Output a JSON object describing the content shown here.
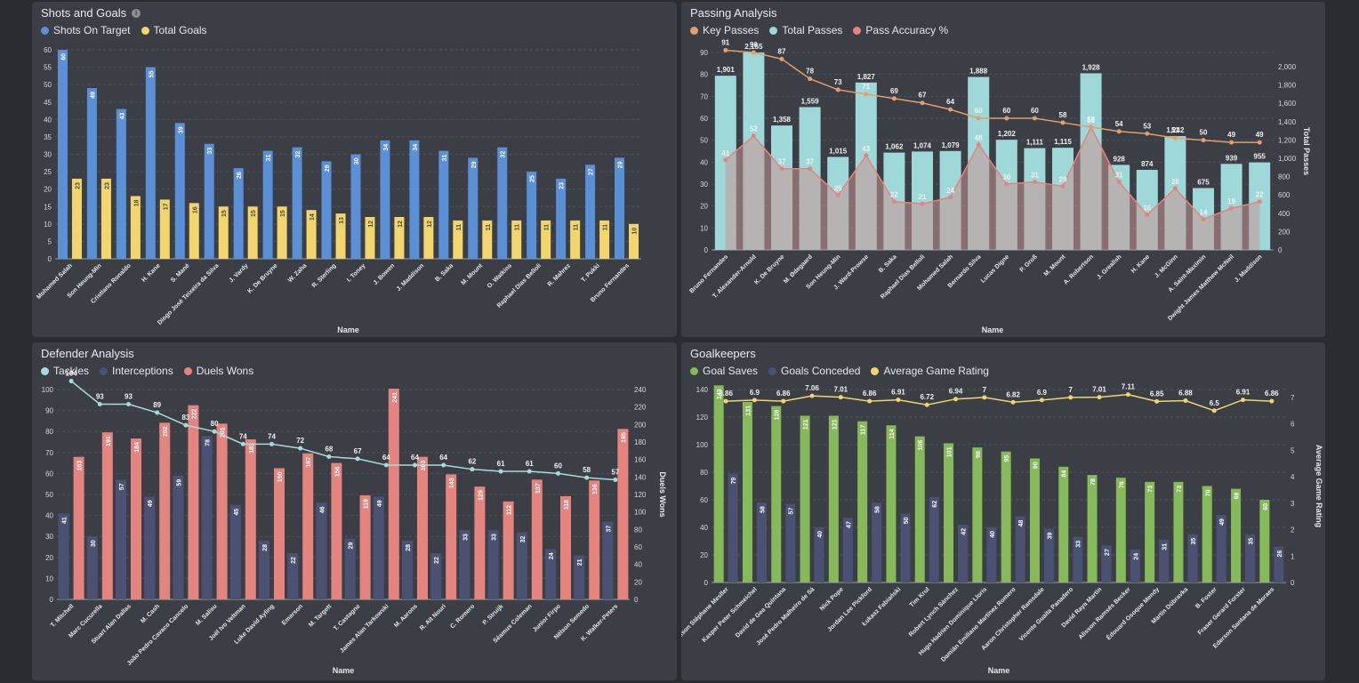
{
  "colors": {
    "blue": "#5b8fd6",
    "yellow": "#f2d66d",
    "orange": "#e09f6c",
    "teal": "#9fd8d8",
    "red": "#e5847f",
    "navy": "#4b5172",
    "green": "#86b95a",
    "gold": "#f0d56c",
    "line_teal": "#a9dada"
  },
  "info_icon": "i",
  "chart_data": [
    {
      "type": "bar",
      "title": "Shots and Goals",
      "xlabel": "Name",
      "ylim": [
        0,
        60
      ],
      "yticks": [
        0,
        5,
        10,
        15,
        20,
        25,
        30,
        35,
        40,
        45,
        50,
        55,
        60
      ],
      "categories": [
        "Mohamed Salah",
        "Son Heung-Min",
        "Cristiano Ronaldo",
        "H. Kane",
        "S. Mané",
        "Diogo José Teixeira da Silva",
        "J. Vardy",
        "K. De Bruyne",
        "W. Zaha",
        "R. Sterling",
        "I. Toney",
        "J. Bowen",
        "J. Maddison",
        "B. Saka",
        "M. Mount",
        "O. Watkins",
        "Raphael Dias Belloli",
        "R. Mahrez",
        "T. Pukki",
        "Bruno Fernandes"
      ],
      "series": [
        {
          "name": "Shots On Target",
          "color": "#5b8fd6",
          "values": [
            60,
            49,
            43,
            55,
            39,
            33,
            26,
            31,
            32,
            28,
            30,
            34,
            34,
            31,
            29,
            32,
            25,
            23,
            27,
            29
          ]
        },
        {
          "name": "Total Goals",
          "color": "#f2d66d",
          "values": [
            23,
            23,
            18,
            17,
            16,
            15,
            15,
            15,
            14,
            13,
            12,
            12,
            12,
            11,
            11,
            11,
            11,
            11,
            11,
            10
          ]
        }
      ]
    },
    {
      "type": "bar",
      "title": "Passing Analysis",
      "xlabel": "Name",
      "ylabel_right": "Total Passes",
      "ylim": [
        0,
        90
      ],
      "yticks": [
        0,
        10,
        20,
        30,
        40,
        50,
        60,
        70,
        80,
        90
      ],
      "y2lim": [
        0,
        2155
      ],
      "y2ticks": [
        0,
        200,
        400,
        600,
        800,
        1000,
        1200,
        1400,
        1600,
        1800,
        2000
      ],
      "y2tick_labels": [
        "0",
        "200",
        "400",
        "600",
        "800",
        "1,000",
        "1,200",
        "1,400",
        "1,600",
        "1,800",
        "2,000"
      ],
      "categories": [
        "Bruno Fernandes",
        "T. Alexander-Arnold",
        "K. De Bruyne",
        "M. Ødegaard",
        "Son Heung-Min",
        "J. Ward-Prowse",
        "B. Saka",
        "Raphael Dias Belloli",
        "Mohamed Salah",
        "Bernardo Silva",
        "Lucas Digne",
        "P. Groß",
        "M. Mount",
        "A. Robertson",
        "J. Grealish",
        "H. Kane",
        "J. McGinn",
        "A. Saint-Maximin",
        "Dwight James Matthew McNeil",
        "J. Maddison"
      ],
      "series": [
        {
          "name": "Key Passes",
          "color": "#e09f6c",
          "kind": "line",
          "values": [
            91,
            90,
            87,
            78,
            73,
            71,
            69,
            67,
            64,
            60,
            60,
            60,
            58,
            56,
            54,
            53,
            51,
            50,
            49,
            49
          ]
        },
        {
          "name": "Total Passes",
          "color": "#9fd8d8",
          "kind": "bar",
          "axis": "right",
          "values": [
            1901,
            2155,
            1358,
            1559,
            1015,
            1827,
            1062,
            1074,
            1079,
            1888,
            1202,
            1111,
            1115,
            1928,
            928,
            874,
            1242,
            675,
            939,
            955
          ],
          "labels": [
            "1,901",
            "2,155",
            "1,358",
            "1,559",
            "1,015",
            "1,827",
            "1,062",
            "1,074",
            "1,079",
            "1,888",
            "1,202",
            "1,111",
            "1,115",
            "1,928",
            "928",
            "874",
            "1,242",
            "675",
            "939",
            "955"
          ]
        },
        {
          "name": "Pass Accuracy %",
          "color": "#e5847f",
          "kind": "area",
          "values": [
            41,
            52,
            37,
            37,
            25,
            43,
            22,
            21,
            24,
            48,
            30,
            31,
            29,
            56,
            31,
            16,
            28,
            14,
            19,
            22
          ]
        }
      ]
    },
    {
      "type": "bar",
      "title": "Defender Analysis",
      "xlabel": "Name",
      "ylabel_right": "Duels Wons",
      "ylim": [
        0,
        100
      ],
      "yticks": [
        0,
        10,
        20,
        30,
        40,
        50,
        60,
        70,
        80,
        90,
        100
      ],
      "y2lim": [
        0,
        240
      ],
      "y2ticks": [
        0,
        20,
        40,
        60,
        80,
        100,
        120,
        140,
        160,
        180,
        200,
        220,
        240
      ],
      "categories": [
        "T. Mitchell",
        "Marc Cucurella",
        "Stuart Alan Dallas",
        "M. Cash",
        "João Pedro Cavaco Cancelo",
        "M. Salisu",
        "Joël Ivo Veltman",
        "Luke David Ayling",
        "Emerson",
        "M. Targett",
        "T. Castagne",
        "James Alan Tarkowski",
        "M. Aarons",
        "R. Aït Nouri",
        "C. Romero",
        "P. Struijk",
        "Séamus Coleman",
        "Junior Firpo",
        "Nélson Semedo",
        "K. Walker-Peters"
      ],
      "series": [
        {
          "name": "Tackles",
          "color": "#a9dada",
          "kind": "line",
          "values": [
            104,
            93,
            93,
            89,
            83,
            80,
            74,
            74,
            72,
            68,
            67,
            64,
            64,
            64,
            62,
            61,
            61,
            60,
            58,
            57
          ]
        },
        {
          "name": "Interceptions",
          "color": "#4b5172",
          "kind": "bar",
          "values": [
            41,
            30,
            57,
            49,
            59,
            78,
            45,
            28,
            22,
            46,
            29,
            49,
            28,
            22,
            33,
            33,
            32,
            24,
            21,
            37
          ]
        },
        {
          "name": "Duels Wons",
          "color": "#e5847f",
          "kind": "bar",
          "axis": "right",
          "values": [
            163,
            191,
            184,
            202,
            222,
            201,
            183,
            150,
            167,
            156,
            119,
            241,
            163,
            143,
            129,
            112,
            137,
            118,
            136,
            195
          ]
        }
      ]
    },
    {
      "type": "bar",
      "title": "Goalkeepers",
      "xlabel": "Name",
      "ylabel_right": "Average Game Rating",
      "ylim": [
        0,
        140
      ],
      "yticks": [
        0,
        20,
        40,
        60,
        80,
        100,
        120,
        140
      ],
      "y2lim": [
        0,
        7.3
      ],
      "y2ticks": [
        0,
        1,
        2,
        3,
        4,
        5,
        6,
        7
      ],
      "categories": [
        "Alisson Stéphane Mesller",
        "Kasper Peter Schmeichel",
        "David de Gea Quintana",
        "José Pedro Malheiro de Sá",
        "Nick Pope",
        "Jordan Lee Pickford",
        "Łukasz Fabiański",
        "Tim Krul",
        "Robert Lynch Sánchez",
        "Hugo Hadrien Dominique Lloris",
        "Damián Emiliano Martínez Romero",
        "Aaron Christopher Ramsdale",
        "Vicente Guaita Panadero",
        "David Raya Martin",
        "Alisson Ramsés Becker",
        "Édouard Osoque Mendy",
        "Martin Dúbravka",
        "B. Foster",
        "Fraser Gerard Forster",
        "Ederson Santana de Moraes"
      ],
      "series": [
        {
          "name": "Goal Saves",
          "color": "#86b95a",
          "kind": "bar",
          "values": [
            143,
            131,
            128,
            121,
            121,
            117,
            114,
            106,
            101,
            98,
            95,
            90,
            84,
            78,
            76,
            73,
            73,
            70,
            68,
            60
          ]
        },
        {
          "name": "Goals Conceded",
          "color": "#4b5172",
          "kind": "bar",
          "values": [
            79,
            58,
            57,
            40,
            47,
            58,
            50,
            62,
            42,
            40,
            48,
            39,
            33,
            27,
            24,
            31,
            35,
            49,
            35,
            26
          ]
        },
        {
          "name": "Average Game Rating",
          "color": "#f0d56c",
          "kind": "line",
          "axis": "right",
          "values": [
            6.86,
            6.9,
            6.86,
            7.06,
            7.01,
            6.86,
            6.91,
            6.72,
            6.94,
            7,
            6.82,
            6.9,
            7,
            7.01,
            7.11,
            6.85,
            6.88,
            6.5,
            6.91,
            6.86
          ]
        }
      ]
    }
  ]
}
